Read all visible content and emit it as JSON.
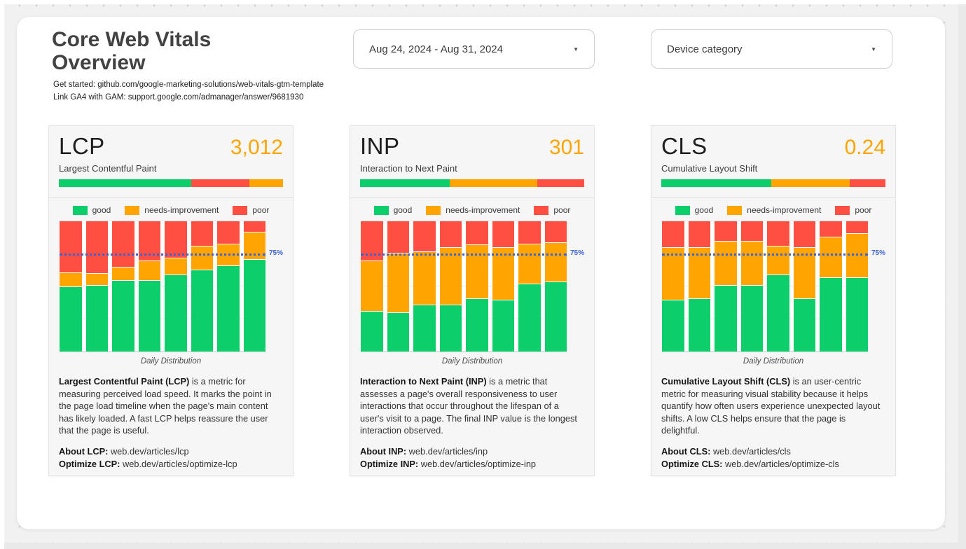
{
  "page": {
    "title": "Core Web Vitals Overview",
    "subtitle_lines": [
      "Get started: github.com/google-marketing-solutions/web-vitals-gtm-template",
      "Link GA4 with GAM: support.google.com/admanager/answer/9681930"
    ]
  },
  "filters": {
    "date_range": {
      "value": "Aug 24, 2024 - Aug 31, 2024"
    },
    "device_category": {
      "value": "Device category"
    }
  },
  "colors": {
    "good": "#0CCE6B",
    "needs_improvement": "#FFA400",
    "poor": "#FF4E42",
    "metric_value": "#FFA400",
    "reference_line": "#3B63D6"
  },
  "legend": {
    "good": "good",
    "needs_improvement": "needs-improvement",
    "poor": "poor"
  },
  "reference_line_label": "75%",
  "caption": "Daily Distribution",
  "cards": [
    {
      "title": "LCP",
      "value": "3,012",
      "subtitle": "Largest Contentful Paint",
      "description_lead": "Largest Contentful Paint (LCP)",
      "description_rest": " is a metric for measuring perceived load speed. It marks the point in the page load timeline when the page's main content has likely loaded. A fast LCP helps reassure the user that the page is useful.",
      "about_label": "About LCP:",
      "about_url": "web.dev/articles/lcp",
      "optimize_label": "Optimize LCP:",
      "optimize_url": "web.dev/articles/optimize-lcp"
    },
    {
      "title": "INP",
      "value": "301",
      "subtitle": "Interaction to Next Paint",
      "description_lead": "Interaction to Next Paint (INP)",
      "description_rest": " is a metric that assesses a page's overall responsiveness to user interactions that occur throughout the lifespan of a user's visit to a page. The final INP value is the longest interaction observed.",
      "about_label": "About INP:",
      "about_url": "web.dev/articles/inp",
      "optimize_label": "Optimize INP:",
      "optimize_url": "web.dev/articles/optimize-inp"
    },
    {
      "title": "CLS",
      "value": "0.24",
      "subtitle": "Cumulative Layout Shift",
      "description_lead": "Cumulative Layout Shift (CLS)",
      "description_rest": " is an user-centric metric for measuring visual stability because it helps quantify how often users experience unexpected layout shifts. A low CLS helps ensure that the page is delightful.",
      "about_label": "About CLS:",
      "about_url": "web.dev/articles/cls",
      "optimize_label": "Optimize CLS:",
      "optimize_url": "web.dev/articles/optimize-cls"
    }
  ],
  "chart_data": [
    {
      "metric": "LCP",
      "type": "bar",
      "stacked_percent": true,
      "title": "Daily Distribution",
      "num_days": 8,
      "ylim": [
        0,
        100
      ],
      "series": [
        {
          "name": "good",
          "color_key": "good",
          "values": [
            50,
            51,
            55,
            55,
            59,
            63,
            66,
            71
          ]
        },
        {
          "name": "needs-improvement",
          "color_key": "needs_improvement",
          "values": [
            11,
            9,
            10,
            15,
            13,
            18,
            17,
            21
          ]
        },
        {
          "name": "poor",
          "color_key": "poor",
          "values": [
            39,
            40,
            35,
            30,
            28,
            19,
            17,
            8
          ]
        }
      ],
      "reference_line": {
        "value": 75,
        "label": "75%"
      },
      "gauge": {
        "segments": [
          {
            "status": "good",
            "pct": 59
          },
          {
            "status": "poor",
            "pct": 26
          },
          {
            "status": "needs_improvement",
            "pct": 15
          }
        ]
      }
    },
    {
      "metric": "INP",
      "type": "bar",
      "stacked_percent": true,
      "title": "Daily Distribution",
      "num_days": 8,
      "ylim": [
        0,
        100
      ],
      "series": [
        {
          "name": "good",
          "color_key": "good",
          "values": [
            31,
            30,
            36,
            36,
            41,
            40,
            52,
            54
          ]
        },
        {
          "name": "needs-improvement",
          "color_key": "needs_improvement",
          "values": [
            39,
            46,
            41,
            44,
            41,
            40,
            31,
            30
          ]
        },
        {
          "name": "poor",
          "color_key": "poor",
          "values": [
            30,
            24,
            23,
            20,
            18,
            20,
            17,
            16
          ]
        }
      ],
      "reference_line": {
        "value": 75,
        "label": "75%"
      },
      "gauge": {
        "segments": [
          {
            "status": "good",
            "pct": 40
          },
          {
            "status": "needs_improvement",
            "pct": 39
          },
          {
            "status": "poor",
            "pct": 21
          }
        ]
      }
    },
    {
      "metric": "CLS",
      "type": "bar",
      "stacked_percent": true,
      "title": "Daily Distribution",
      "num_days": 8,
      "ylim": [
        0,
        100
      ],
      "series": [
        {
          "name": "good",
          "color_key": "good",
          "values": [
            40,
            41,
            51,
            51,
            59,
            41,
            57,
            57
          ]
        },
        {
          "name": "needs-improvement",
          "color_key": "needs_improvement",
          "values": [
            40,
            39,
            34,
            34,
            22,
            39,
            31,
            34
          ]
        },
        {
          "name": "poor",
          "color_key": "poor",
          "values": [
            20,
            20,
            15,
            15,
            19,
            20,
            12,
            9
          ]
        }
      ],
      "reference_line": {
        "value": 75,
        "label": "75%"
      },
      "gauge": {
        "segments": [
          {
            "status": "good",
            "pct": 49
          },
          {
            "status": "needs_improvement",
            "pct": 35
          },
          {
            "status": "poor",
            "pct": 16
          }
        ]
      }
    }
  ]
}
